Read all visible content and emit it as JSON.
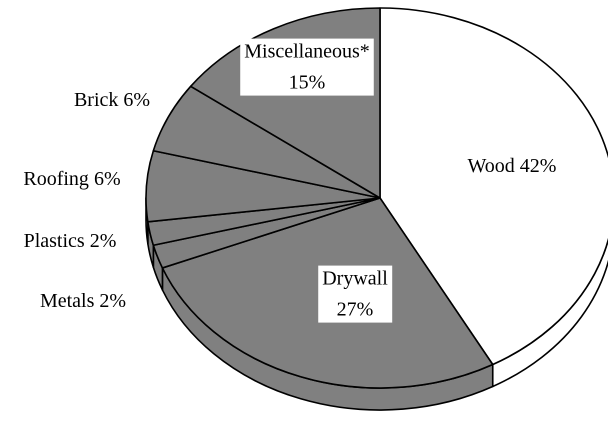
{
  "chart_data": {
    "type": "pie",
    "categories": [
      "Wood",
      "Drywall",
      "Metals",
      "Plastics",
      "Roofing",
      "Brick",
      "Miscellaneous*"
    ],
    "values": [
      42,
      27,
      2,
      2,
      6,
      6,
      15
    ],
    "value_labels": [
      "42%",
      "27%",
      "2%",
      "2%",
      "6%",
      "6%",
      "15%"
    ],
    "colors": [
      "#ffffff",
      "#808080",
      "#808080",
      "#808080",
      "#808080",
      "#808080",
      "#808080"
    ]
  }
}
